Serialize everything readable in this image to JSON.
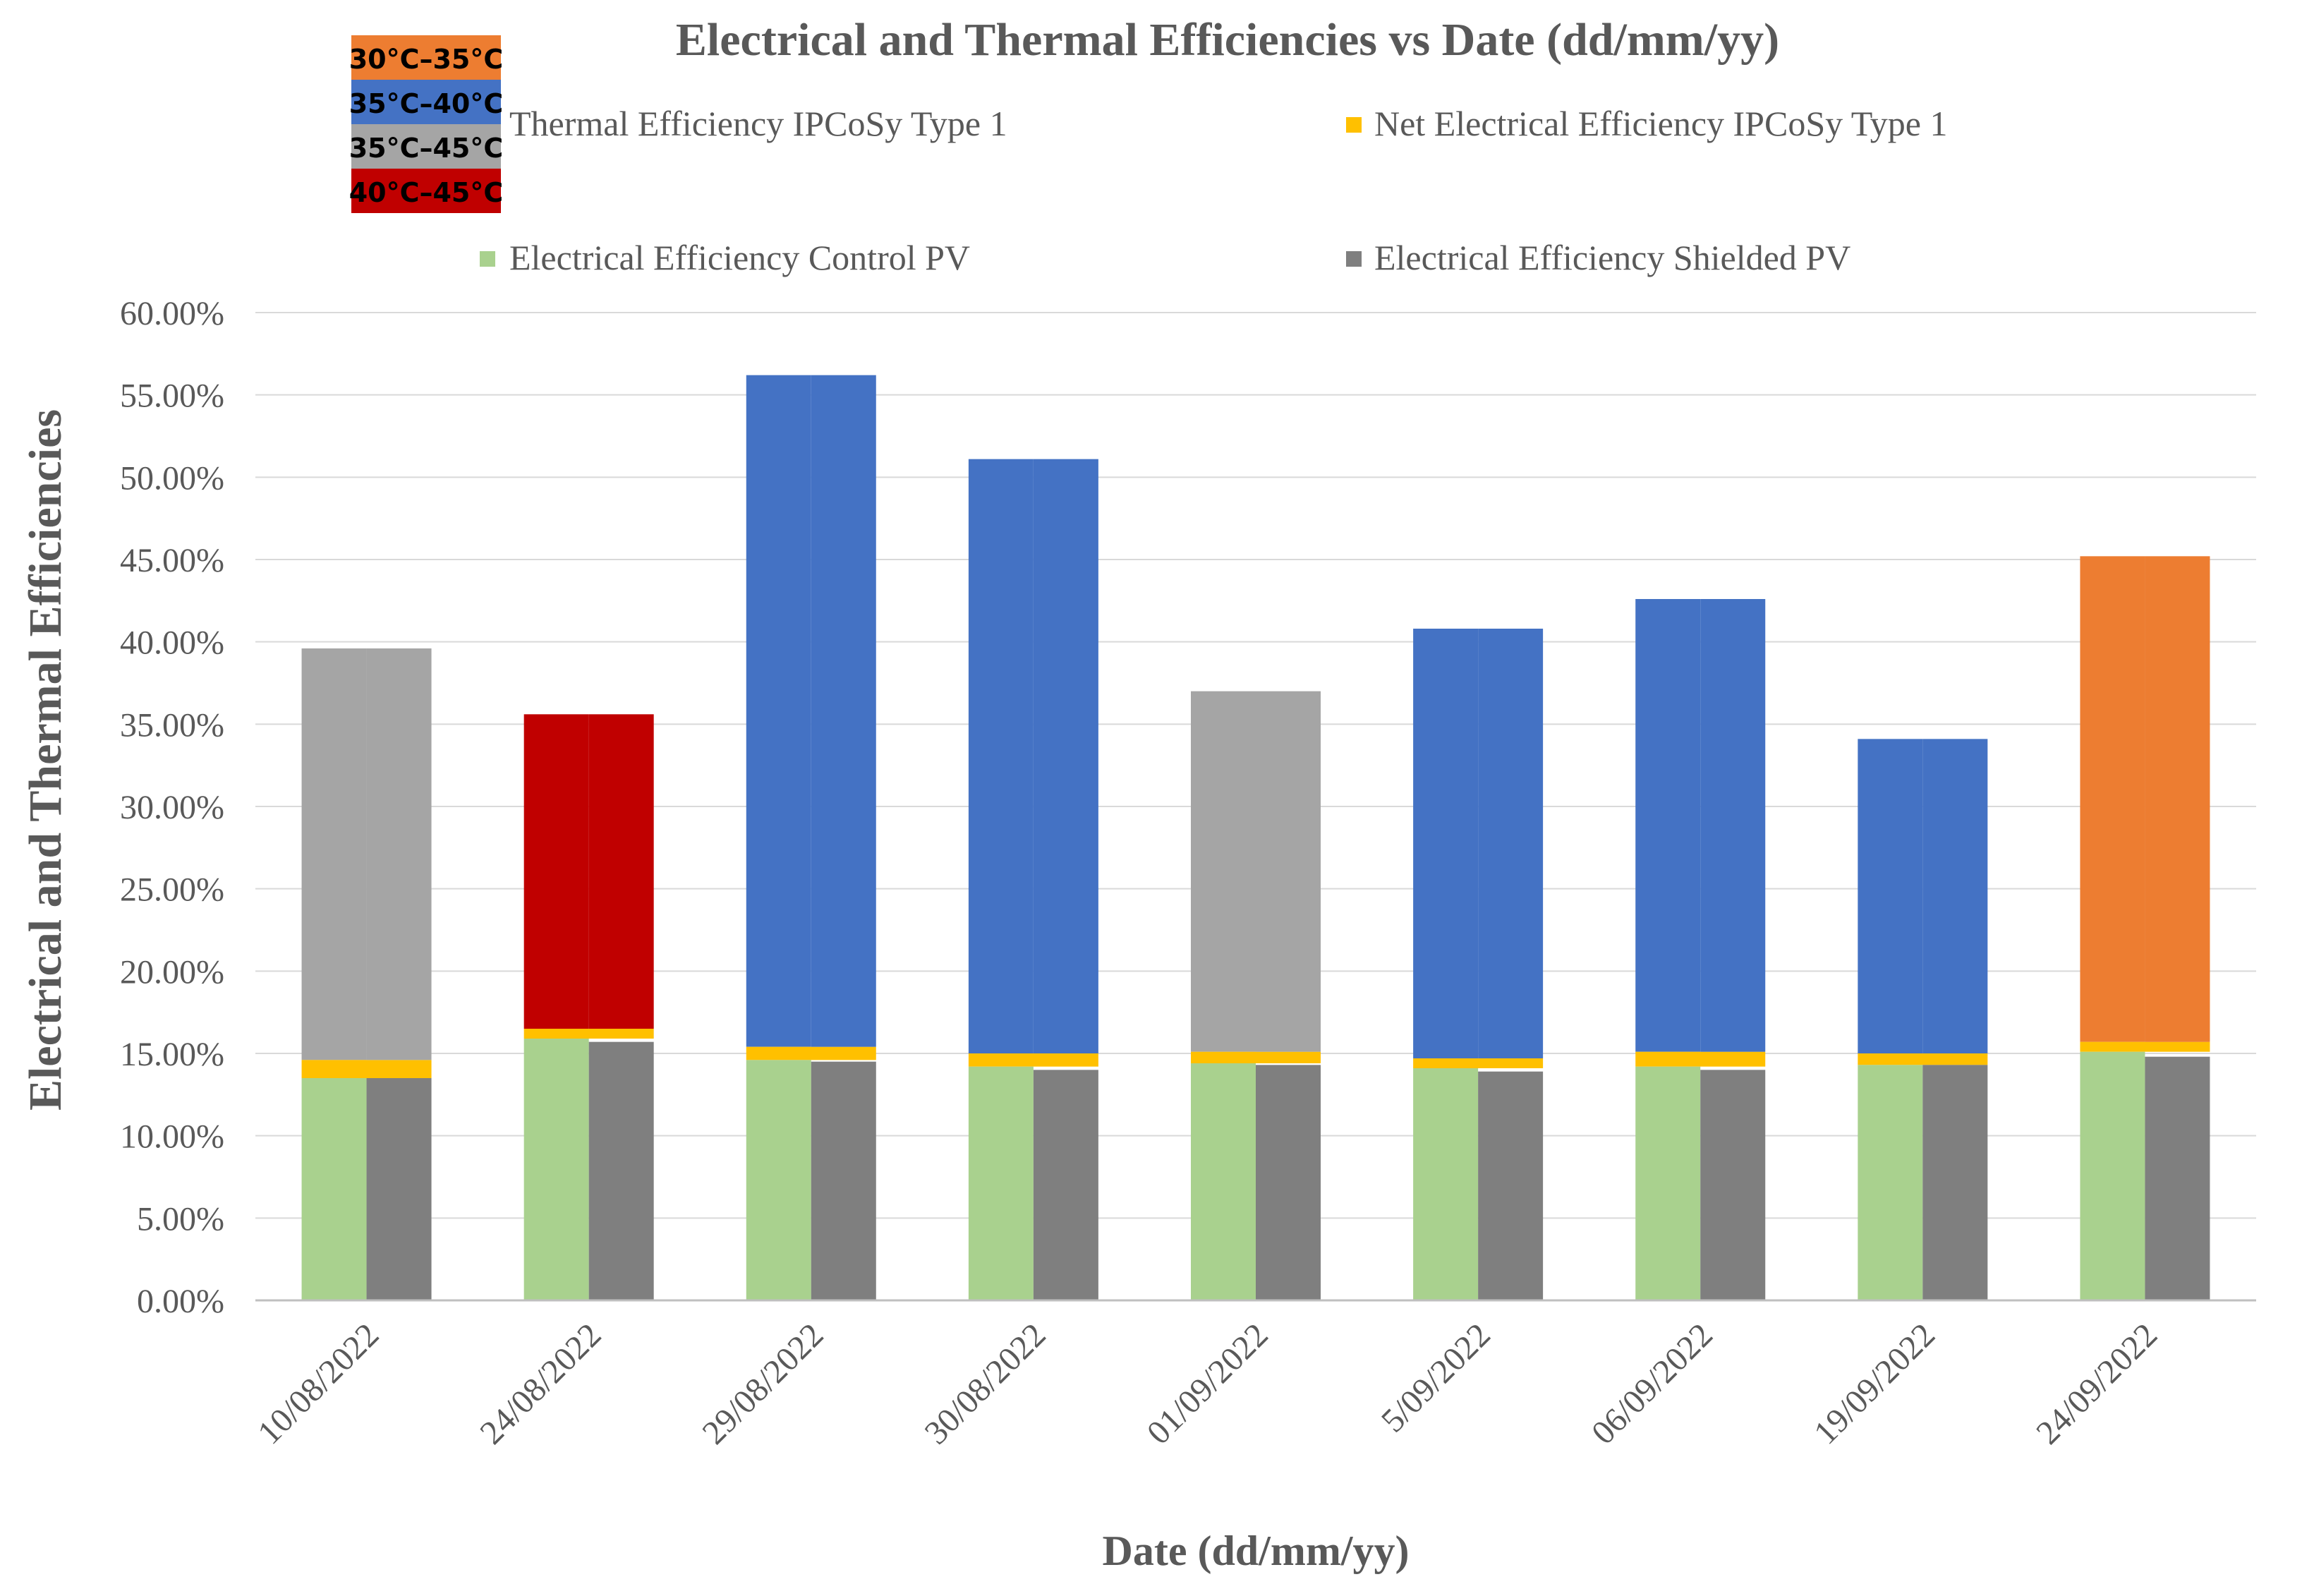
{
  "chart_data": {
    "type": "bar",
    "title": "Electrical and Thermal Efficiencies vs Date (dd/mm/yy)",
    "xlabel": "Date (dd/mm/yy)",
    "ylabel": "Electrical and Thermal Efficiencies",
    "ylim": [
      0,
      60
    ],
    "y_tick_values": [
      0,
      5,
      10,
      15,
      20,
      25,
      30,
      35,
      40,
      45,
      50,
      55,
      60
    ],
    "y_tick_labels": [
      "0.00%",
      "5.00%",
      "10.00%",
      "15.00%",
      "20.00%",
      "25.00%",
      "30.00%",
      "35.00%",
      "40.00%",
      "45.00%",
      "50.00%",
      "55.00%",
      "60.00%"
    ],
    "grid": true,
    "legend_position": "top",
    "categories": [
      "10/08/2022",
      "24/08/2022",
      "29/08/2022",
      "30/08/2022",
      "01/09/2022",
      "5/09/2022",
      "06/09/2022",
      "19/09/2022",
      "24/09/2022"
    ],
    "series": [
      {
        "name": "Thermal Efficiency IPCoSy Type 1",
        "color": "#4472C4",
        "values": [
          39.6,
          35.6,
          56.2,
          51.1,
          37.0,
          40.8,
          42.6,
          34.1,
          45.2
        ],
        "stacked_on": "Net Electrical Efficiency IPCoSy Type 1"
      },
      {
        "name": "Net Electrical Efficiency IPCoSy Type 1",
        "color": "#FFC000",
        "values": [
          14.6,
          16.5,
          15.4,
          15.0,
          15.1,
          14.7,
          15.1,
          15.0,
          15.7
        ]
      },
      {
        "name": "Electrical Efficiency Control PV",
        "color": "#A9D18E",
        "values": [
          13.5,
          15.9,
          14.6,
          14.2,
          14.4,
          14.1,
          14.2,
          14.3,
          15.1
        ]
      },
      {
        "name": "Electrical Efficiency Shielded PV",
        "color": "#7F7F7F",
        "values": [
          13.5,
          15.7,
          14.5,
          14.0,
          14.3,
          13.9,
          14.0,
          14.3,
          14.8
        ]
      }
    ],
    "thermal_bar_colors": [
      "#A5A5A5",
      "#C00000",
      "#4472C4",
      "#4472C4",
      "#A5A5A5",
      "#4472C4",
      "#4472C4",
      "#4472C4",
      "#ED7D31"
    ],
    "temperature_key": [
      {
        "label": "30°C–35°C",
        "color": "#ED7D31"
      },
      {
        "label": "35°C–40°C",
        "color": "#4472C4"
      },
      {
        "label": "35°C–45°C",
        "color": "#A5A5A5"
      },
      {
        "label": "40°C–45°C",
        "color": "#C00000"
      }
    ]
  }
}
